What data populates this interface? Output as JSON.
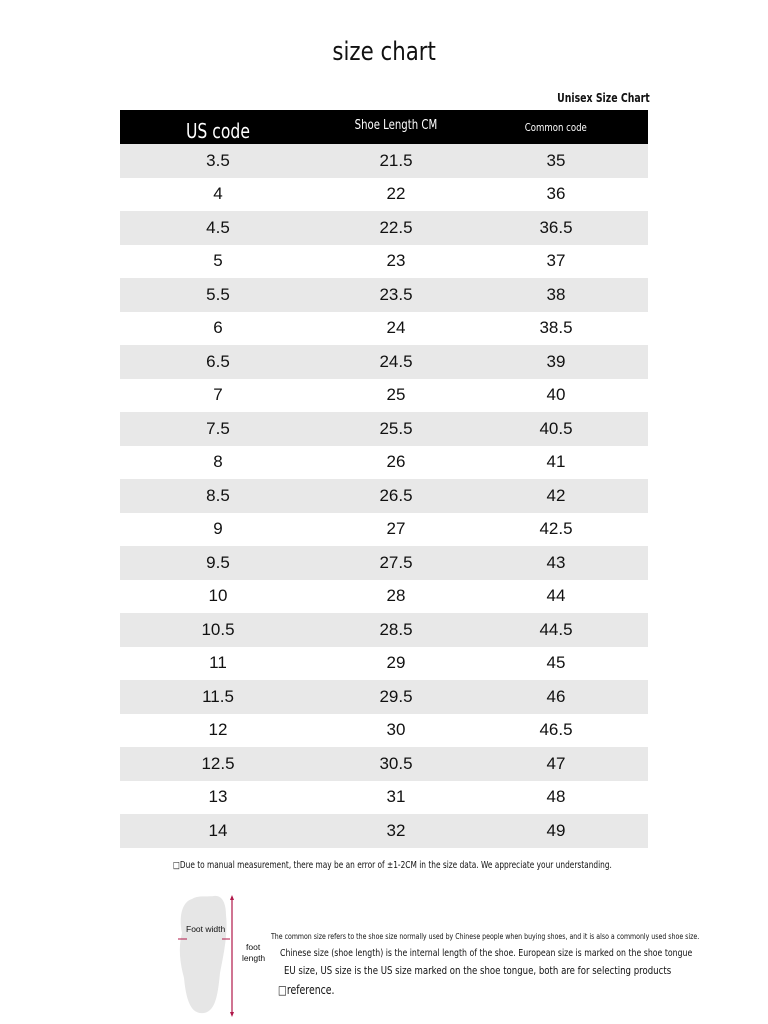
{
  "title": "size chart",
  "subtitle": "Unisex Size Chart",
  "table": {
    "headers": [
      "US code",
      "Shoe Length CM",
      "Common code"
    ],
    "rows": [
      [
        "3.5",
        "21.5",
        "35"
      ],
      [
        "4",
        "22",
        "36"
      ],
      [
        "4.5",
        "22.5",
        "36.5"
      ],
      [
        "5",
        "23",
        "37"
      ],
      [
        "5.5",
        "23.5",
        "38"
      ],
      [
        "6",
        "24",
        "38.5"
      ],
      [
        "6.5",
        "24.5",
        "39"
      ],
      [
        "7",
        "25",
        "40"
      ],
      [
        "7.5",
        "25.5",
        "40.5"
      ],
      [
        "8",
        "26",
        "41"
      ],
      [
        "8.5",
        "26.5",
        "42"
      ],
      [
        "9",
        "27",
        "42.5"
      ],
      [
        "9.5",
        "27.5",
        "43"
      ],
      [
        "10",
        "28",
        "44"
      ],
      [
        "10.5",
        "28.5",
        "44.5"
      ],
      [
        "11",
        "29",
        "45"
      ],
      [
        "11.5",
        "29.5",
        "46"
      ],
      [
        "12",
        "30",
        "46.5"
      ],
      [
        "12.5",
        "30.5",
        "47"
      ],
      [
        "13",
        "31",
        "48"
      ],
      [
        "14",
        "32",
        "49"
      ]
    ]
  },
  "note": "□Due to manual measurement, there may be an error of ±1-2CM in the size data. We appreciate your understanding.",
  "diagram": {
    "foot_width_label": "Foot width",
    "foot_length_label_1": "foot",
    "foot_length_label_2": "length",
    "accent_color": "#b0184a"
  },
  "description": {
    "line1": "The common size refers to the shoe size normally used by Chinese people when buying shoes, and it is also a commonly used shoe size.",
    "line2": "Chinese size (shoe length) is the internal length of the shoe. European size is marked on the shoe tongue",
    "line3": "EU size, US size is the US size marked on the shoe tongue, both are for selecting products",
    "line4": "□reference."
  }
}
